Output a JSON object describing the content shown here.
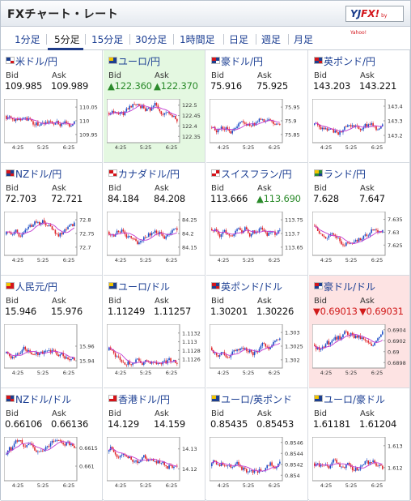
{
  "header": {
    "title": "FXチャート・レート",
    "logo_main": "YJ",
    "logo_fx": "FX!",
    "logo_sub": "by Yahoo!"
  },
  "tabs": [
    {
      "label": "1分足",
      "active": false
    },
    {
      "label": "5分足",
      "active": true
    },
    {
      "label": "15分足",
      "active": false
    },
    {
      "label": "30分足",
      "active": false
    },
    {
      "label": "1時間足",
      "active": false
    },
    {
      "label": "日足",
      "active": false
    },
    {
      "label": "週足",
      "active": false
    },
    {
      "label": "月足",
      "active": false
    }
  ],
  "labels": {
    "bid": "Bid",
    "ask": "Ask"
  },
  "chart_x_ticks": [
    "4:25",
    "5:25",
    "6:25"
  ],
  "colors": {
    "link": "#1c3f93",
    "up_bg": "#e4f8e1",
    "down_bg": "#fde3e3",
    "up_text": "#2a8a2a",
    "down_text": "#d11a1a",
    "candle_up": "#1f4fc7",
    "candle_down": "#e0262b",
    "ma_line": "#c23bd1"
  },
  "pairs": [
    {
      "name": "米ドル/円",
      "flag": "us-flag",
      "bid": "109.985",
      "ask": "109.989",
      "trend": "none",
      "y_ticks": [
        "110.05",
        "110",
        "109.95"
      ],
      "y_range": [
        109.92,
        110.08
      ]
    },
    {
      "name": "ユーロ/円",
      "flag": "eu-flag",
      "bid": "▲122.360",
      "ask": "▲122.370",
      "trend": "up",
      "y_ticks": [
        "122.5",
        "122.45",
        "122.4",
        "122.35"
      ],
      "y_range": [
        122.32,
        122.53
      ]
    },
    {
      "name": "豪ドル/円",
      "flag": "au-flag",
      "bid": "75.916",
      "ask": "75.925",
      "trend": "none",
      "y_ticks": [
        "75.95",
        "75.9",
        "75.85"
      ],
      "y_range": [
        75.82,
        75.98
      ]
    },
    {
      "name": "英ポンド/円",
      "flag": "gb-flag",
      "bid": "143.203",
      "ask": "143.221",
      "trend": "none",
      "y_ticks": [
        "143.4",
        "143.3",
        "143.2"
      ],
      "y_range": [
        143.15,
        143.45
      ]
    },
    {
      "name": "NZドル/円",
      "flag": "nz-flag",
      "bid": "72.703",
      "ask": "72.721",
      "trend": "none",
      "y_ticks": [
        "72.8",
        "72.75",
        "72.7"
      ],
      "y_range": [
        72.67,
        72.83
      ]
    },
    {
      "name": "カナダドル/円",
      "flag": "ca-flag",
      "bid": "84.184",
      "ask": "84.208",
      "trend": "none",
      "y_ticks": [
        "84.25",
        "84.2",
        "84.15"
      ],
      "y_range": [
        84.12,
        84.28
      ]
    },
    {
      "name": "スイスフラン/円",
      "flag": "ch-flag",
      "bid": "113.666",
      "ask": "▲113.690",
      "trend": "ask-up",
      "y_ticks": [
        "113.75",
        "113.7",
        "113.65"
      ],
      "y_range": [
        113.62,
        113.78
      ]
    },
    {
      "name": "ランド/円",
      "flag": "za-flag",
      "bid": "7.628",
      "ask": "7.647",
      "trend": "none",
      "y_ticks": [
        "7.635",
        "7.63",
        "7.625"
      ],
      "y_range": [
        7.621,
        7.638
      ]
    },
    {
      "name": "人民元/円",
      "flag": "cn-flag",
      "bid": "15.946",
      "ask": "15.976",
      "trend": "none",
      "y_ticks": [
        "15.96",
        "15.94"
      ],
      "y_range": [
        15.93,
        15.99
      ]
    },
    {
      "name": "ユーロ/ドル",
      "flag": "eu-flag",
      "bid": "1.11249",
      "ask": "1.11257",
      "trend": "none",
      "y_ticks": [
        "1.1132",
        "1.113",
        "1.1128",
        "1.1126"
      ],
      "y_range": [
        1.1124,
        1.1134
      ]
    },
    {
      "name": "英ポンド/ドル",
      "flag": "gb-flag",
      "bid": "1.30201",
      "ask": "1.30226",
      "trend": "none",
      "y_ticks": [
        "1.303",
        "1.3025",
        "1.302"
      ],
      "y_range": [
        1.3017,
        1.3033
      ]
    },
    {
      "name": "豪ドル/ドル",
      "flag": "au-flag",
      "bid": "▼0.69013",
      "ask": "▼0.69031",
      "trend": "down",
      "y_ticks": [
        "0.6904",
        "0.6902",
        "0.69",
        "0.6898"
      ],
      "y_range": [
        0.6897,
        0.6905
      ]
    },
    {
      "name": "NZドル/ドル",
      "flag": "nz-flag",
      "bid": "0.66106",
      "ask": "0.66136",
      "trend": "none",
      "y_ticks": [
        "0.6615",
        "0.661"
      ],
      "y_range": [
        0.6606,
        0.6618
      ]
    },
    {
      "name": "香港ドル/円",
      "flag": "hk-flag",
      "bid": "14.129",
      "ask": "14.159",
      "trend": "none",
      "y_ticks": [
        "14.13",
        "14.12"
      ],
      "y_range": [
        14.114,
        14.136
      ]
    },
    {
      "name": "ユーロ/英ポンド",
      "flag": "eu-flag",
      "bid": "0.85435",
      "ask": "0.85453",
      "trend": "none",
      "y_ticks": [
        "0.8546",
        "0.8544",
        "0.8542",
        "0.854"
      ],
      "y_range": [
        0.8539,
        0.8547
      ]
    },
    {
      "name": "ユーロ/豪ドル",
      "flag": "eu-flag",
      "bid": "1.61181",
      "ask": "1.61204",
      "trend": "none",
      "y_ticks": [
        "1.613",
        "1.612"
      ],
      "y_range": [
        1.6114,
        1.6134
      ]
    }
  ]
}
